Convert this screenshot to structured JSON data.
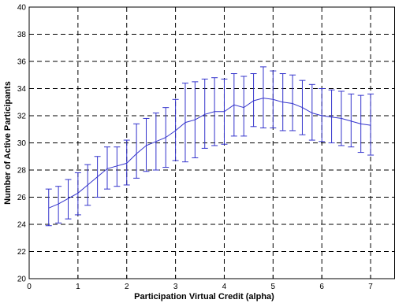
{
  "chart_data": {
    "type": "line",
    "title": "",
    "xlabel": "Participation Virtual Credit (alpha)",
    "ylabel": "Number of Active Participants",
    "xlim": [
      0,
      7.5
    ],
    "ylim": [
      20,
      40
    ],
    "xticks": [
      0,
      1,
      2,
      3,
      4,
      5,
      6,
      7
    ],
    "yticks": [
      20,
      22,
      24,
      26,
      28,
      30,
      32,
      34,
      36,
      38,
      40
    ],
    "grid": true,
    "line_color": "#3333cc",
    "series": [
      {
        "x": [
          0.4,
          0.6,
          0.8,
          1.0,
          1.2,
          1.4,
          1.6,
          1.8,
          2.0,
          2.2,
          2.4,
          2.6,
          2.8,
          3.0,
          3.2,
          3.4,
          3.6,
          3.8,
          4.0,
          4.2,
          4.4,
          4.6,
          4.8,
          5.0,
          5.2,
          5.4,
          5.6,
          5.8,
          6.0,
          6.2,
          6.4,
          6.6,
          6.8,
          7.0
        ],
        "y": [
          25.2,
          25.5,
          25.9,
          26.3,
          26.9,
          27.5,
          28.1,
          28.3,
          28.5,
          29.2,
          29.8,
          30.1,
          30.4,
          30.9,
          31.5,
          31.7,
          32.1,
          32.3,
          32.3,
          32.8,
          32.6,
          33.1,
          33.3,
          33.2,
          33.0,
          32.9,
          32.6,
          32.2,
          32.0,
          31.9,
          31.8,
          31.6,
          31.4,
          31.3
        ],
        "y_lower": [
          23.9,
          24.1,
          24.4,
          24.7,
          25.4,
          26.0,
          26.6,
          26.8,
          26.9,
          27.4,
          27.9,
          28.0,
          28.2,
          28.7,
          28.6,
          28.9,
          29.6,
          29.8,
          29.9,
          30.5,
          30.5,
          31.2,
          31.1,
          31.1,
          30.9,
          30.9,
          30.6,
          30.2,
          30.1,
          30.0,
          29.8,
          29.7,
          29.3,
          29.1
        ],
        "y_upper": [
          26.6,
          26.8,
          27.3,
          27.8,
          28.4,
          29.0,
          29.7,
          29.7,
          30.2,
          31.4,
          31.8,
          32.2,
          32.6,
          33.2,
          34.4,
          34.5,
          34.7,
          34.8,
          34.7,
          35.1,
          34.9,
          35.1,
          35.6,
          35.3,
          35.1,
          35.0,
          34.6,
          34.3,
          34.0,
          33.9,
          33.8,
          33.6,
          33.5,
          33.6
        ]
      }
    ]
  }
}
